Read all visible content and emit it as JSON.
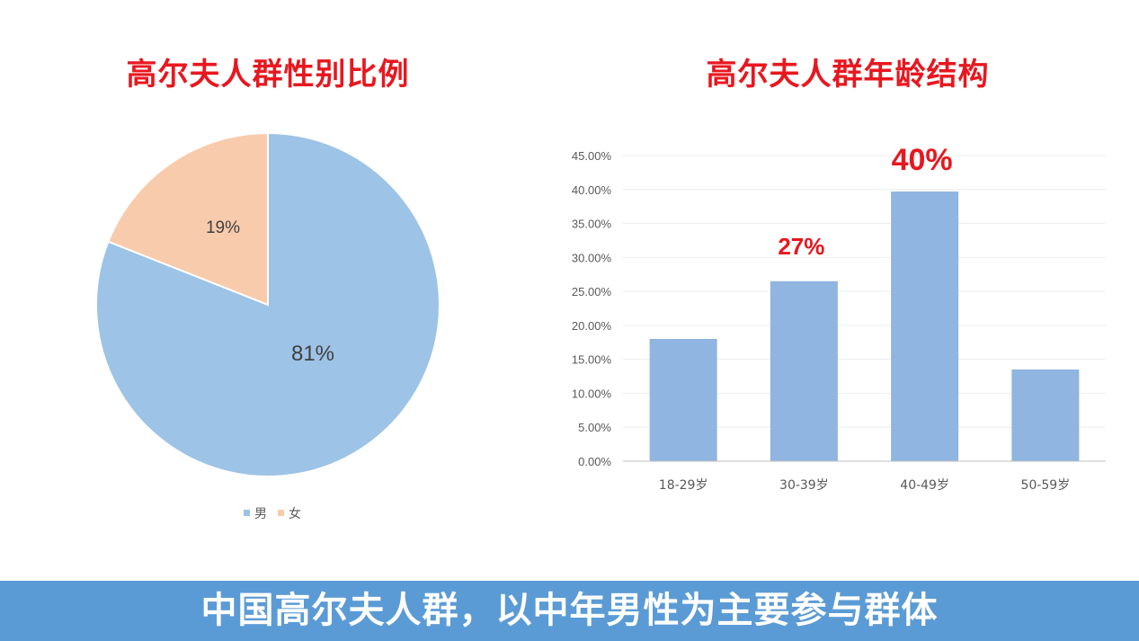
{
  "colors": {
    "title": "#e8171f",
    "male_slice": "#9dc3e6",
    "female_slice": "#f8cbad",
    "bars": "#8fb5e0",
    "highlight_label": "#e8171f",
    "footer_bg": "#5b9bd5",
    "footer_text": "#ffffff"
  },
  "footer": {
    "text": "中国高尔夫人群，以中年男性为主要参与群体"
  },
  "chart_data": [
    {
      "type": "pie",
      "title": "高尔夫人群性别比例",
      "labels": [
        "男",
        "女"
      ],
      "values": [
        81,
        19
      ],
      "data_labels": [
        "81%",
        "19%"
      ],
      "legend": [
        "男",
        "女"
      ],
      "legend_position": "bottom"
    },
    {
      "type": "bar",
      "title": "高尔夫人群年龄结构",
      "categories": [
        "18-29岁",
        "30-39岁",
        "40-49岁",
        "50-59岁"
      ],
      "values": [
        18.0,
        26.5,
        39.7,
        13.5
      ],
      "ylim": [
        0,
        45
      ],
      "yticks": [
        "0.00%",
        "5.00%",
        "10.00%",
        "15.00%",
        "20.00%",
        "25.00%",
        "30.00%",
        "35.00%",
        "40.00%",
        "45.00%"
      ],
      "data_labels": [
        "",
        "27%",
        "40%",
        ""
      ],
      "grid": true,
      "xlabel": "",
      "ylabel": ""
    }
  ]
}
